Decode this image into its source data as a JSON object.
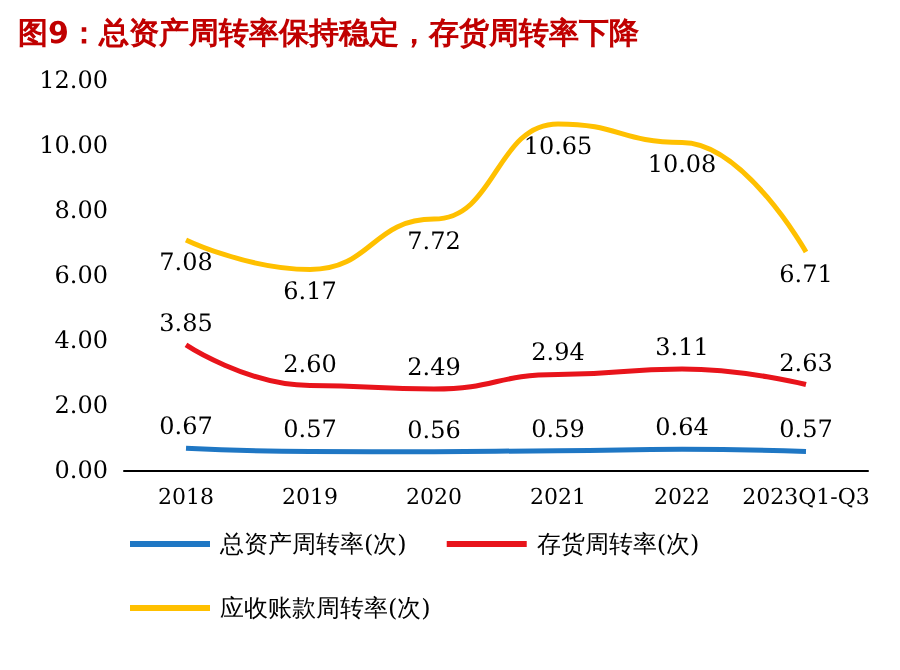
{
  "chart_data": {
    "type": "line",
    "title": "图9：总资产周转率保持稳定，存货周转率下降",
    "categories": [
      "2018",
      "2019",
      "2020",
      "2021",
      "2022",
      "2023Q1-Q3"
    ],
    "series": [
      {
        "name": "总资产周转率(次)",
        "color": "#1f77c4",
        "values": [
          0.67,
          0.57,
          0.56,
          0.59,
          0.64,
          0.57
        ],
        "value_labels": [
          "0.67",
          "0.57",
          "0.56",
          "0.59",
          "0.64",
          "0.57"
        ]
      },
      {
        "name": "存货周转率(次)",
        "color": "#e8141b",
        "values": [
          3.85,
          2.6,
          2.49,
          2.94,
          3.11,
          2.63
        ],
        "value_labels": [
          "3.85",
          "2.60",
          "2.49",
          "2.94",
          "3.11",
          "2.63"
        ]
      },
      {
        "name": "应收账款周转率(次)",
        "color": "#ffc000",
        "values": [
          7.08,
          6.17,
          7.72,
          10.65,
          10.08,
          6.71
        ],
        "value_labels": [
          "7.08",
          "6.17",
          "7.72",
          "10.65",
          "10.08",
          "6.71"
        ]
      }
    ],
    "ylim": [
      0,
      12
    ],
    "yticks": [
      {
        "value": 0,
        "label": "0.00"
      },
      {
        "value": 2,
        "label": "2.00"
      },
      {
        "value": 4,
        "label": "4.00"
      },
      {
        "value": 6,
        "label": "6.00"
      },
      {
        "value": 8,
        "label": "8.00"
      },
      {
        "value": 10,
        "label": "10.00"
      },
      {
        "value": 12,
        "label": "12.00"
      }
    ],
    "legend": "bottom",
    "marker": "none",
    "line_style": "solid",
    "grid": false
  }
}
